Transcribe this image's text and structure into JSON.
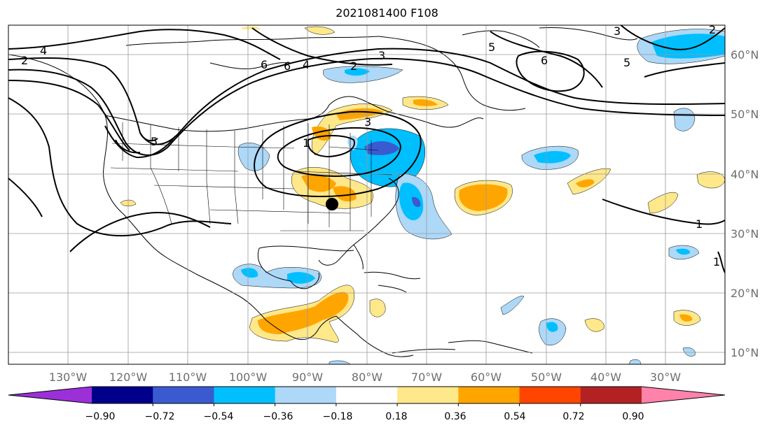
{
  "title": "2021081400 F108",
  "map": {
    "lon_labels": [
      "130°W",
      "120°W",
      "110°W",
      "100°W",
      "90°W",
      "80°W",
      "70°W",
      "60°W",
      "50°W",
      "40°W",
      "30°W"
    ],
    "lat_labels": [
      "60°N",
      "50°N",
      "40°N",
      "30°N",
      "20°N",
      "10°N"
    ],
    "contour_labels": [
      "4",
      "6",
      "4",
      "2",
      "3",
      "6",
      "5",
      "3",
      "5",
      "2",
      "3",
      "1",
      "5",
      "6",
      "2",
      "1",
      "1"
    ],
    "point_marker": "black-dot"
  },
  "colorbar": {
    "colors": [
      "#9b30d9",
      "#00008b",
      "#3a5bd0",
      "#00bfff",
      "#add8f8",
      "#ffffff",
      "#ffe88a",
      "#ffa500",
      "#ff4500",
      "#b22222",
      "#ff82ab"
    ],
    "labels": [
      "−0.90",
      "−0.72",
      "−0.54",
      "−0.36",
      "−0.18",
      "0.18",
      "0.36",
      "0.54",
      "0.72",
      "0.90"
    ]
  }
}
